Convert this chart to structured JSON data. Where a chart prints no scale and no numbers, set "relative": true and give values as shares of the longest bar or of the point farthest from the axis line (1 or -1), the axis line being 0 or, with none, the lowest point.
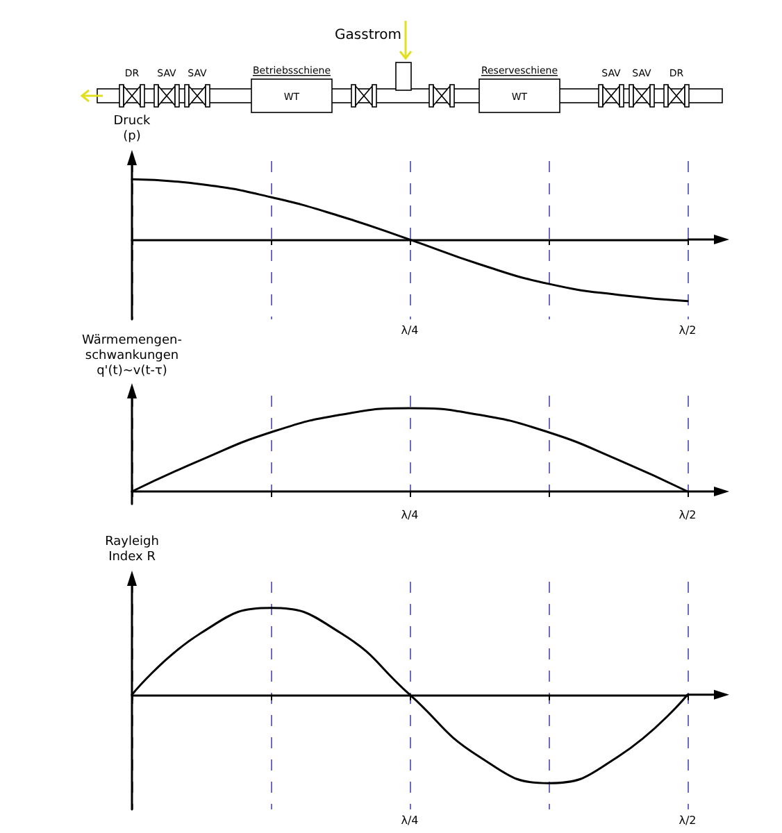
{
  "chart_data": [
    {
      "type": "other",
      "annotations": [
        "Gasstrom",
        "DR",
        "SAV",
        "SAV",
        "Betriebsschiene",
        "WT",
        "Reserveschiene",
        "WT",
        "SAV",
        "SAV",
        "DR"
      ]
    },
    {
      "type": "line",
      "ylabel": "Druck\n(p)",
      "relative": true,
      "categories": [
        null,
        null,
        null,
        null,
        "λ/4",
        null,
        null,
        null,
        "λ/2"
      ],
      "series": [
        {
          "color": "#000000",
          "values": [
            0.98,
            0.9,
            0.69,
            0.38,
            0,
            -0.4,
            -0.72,
            -0.9,
            -1
          ]
        }
      ],
      "grid": "x",
      "marker": "none",
      "line_style": "solid"
    },
    {
      "type": "line",
      "ylabel": "Wärmemengen-\nschwankungen\nq'(t)~v(t-τ)",
      "relative": true,
      "categories": [
        null,
        null,
        null,
        null,
        "λ/4",
        null,
        null,
        null,
        "λ/2"
      ],
      "series": [
        {
          "color": "#000000",
          "values": [
            0,
            0.38,
            0.71,
            0.92,
            1,
            0.92,
            0.71,
            0.38,
            0
          ]
        }
      ],
      "grid": "x",
      "marker": "none",
      "line_style": "solid"
    },
    {
      "type": "line",
      "ylabel": "Rayleigh\nIndex R",
      "relative": true,
      "categories": [
        null,
        null,
        null,
        null,
        "λ/4",
        null,
        null,
        null,
        "λ/2"
      ],
      "series": [
        {
          "color": "#000000",
          "values": [
            0,
            0.7,
            0.98,
            0.7,
            0,
            -0.7,
            -1,
            -0.7,
            0
          ]
        }
      ],
      "grid": "x",
      "marker": "none",
      "line_style": "solid"
    }
  ]
}
